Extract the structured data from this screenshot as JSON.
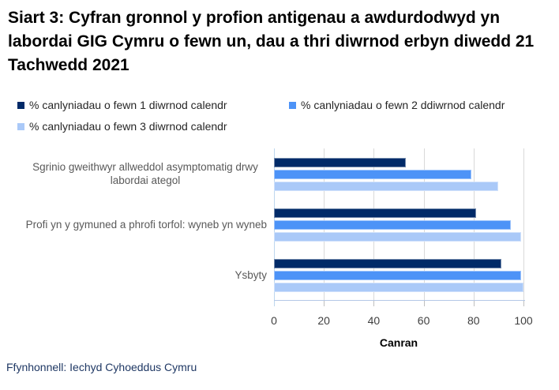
{
  "title": "Siart 3: Cyfran gronnol y profion antigenau a awdurdodwyd yn labordai GIG Cymru o fewn un, dau a thri diwrnod erbyn diwedd 21 Tachwedd 2021",
  "footer": {
    "source": "Ffynhonnell: Iechyd Cyhoeddus Cymru"
  },
  "colors": {
    "series_1_day": "#002A68",
    "series_2_day": "#4D93F7",
    "series_3_day": "#AAC9F8",
    "gridline": "#D9D9D9",
    "zero_line": "#BDD7EE",
    "axis_line": "#B4C7E7",
    "tick_mark": "#BFBFBF",
    "title_text": "#000000",
    "category_text": "#595959",
    "tick_text": "#404040",
    "footer_text": "#1F3864"
  },
  "chart_data": {
    "type": "bar",
    "orientation": "horizontal",
    "categories": [
      "Sgrinio gweithwyr allweddol asymptomatig drwy labordai ategol",
      "Profi yn y gymuned a phrofi torfol: wyneb yn wyneb",
      "Ysbyty"
    ],
    "series": [
      {
        "name": "% canlyniadau o fewn 1 diwrnod calendr",
        "color": "#002A68",
        "values": [
          53,
          81,
          91
        ]
      },
      {
        "name": "% canlyniadau o fewn 2 ddiwrnod calendr",
        "color": "#4D93F7",
        "values": [
          79,
          95,
          99
        ]
      },
      {
        "name": "% canlyniadau o fewn 3 diwrnod calendr",
        "color": "#AAC9F8",
        "values": [
          90,
          99,
          100
        ]
      }
    ],
    "xlabel": "Canran",
    "xlim": [
      0,
      100
    ],
    "xticks": [
      0,
      20,
      40,
      60,
      80,
      100
    ],
    "grid": true,
    "legend_position": "top-left"
  }
}
